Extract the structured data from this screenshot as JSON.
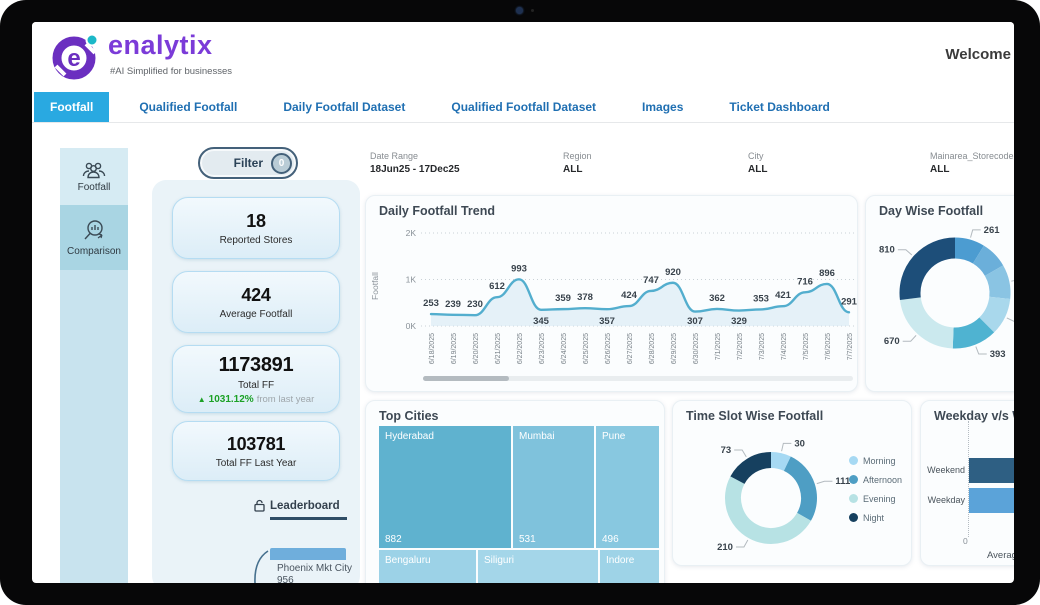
{
  "device": {
    "welcome_text": "Welcome"
  },
  "brand": {
    "name": "enalytix",
    "tagline": "#AI Simplified for businesses",
    "logo_letter": "e"
  },
  "tabs": {
    "items": [
      {
        "label": "Footfall",
        "active": true
      },
      {
        "label": "Qualified Footfall",
        "active": false
      },
      {
        "label": "Daily Footfall Dataset",
        "active": false
      },
      {
        "label": "Qualified Footfall Dataset",
        "active": false
      },
      {
        "label": "Images",
        "active": false
      },
      {
        "label": "Ticket Dashboard",
        "active": false
      }
    ]
  },
  "sidebar": {
    "items": [
      {
        "label": "Footfall",
        "icon": "people-icon"
      },
      {
        "label": "Comparison",
        "icon": "magnifier-chart-icon"
      }
    ]
  },
  "filter_button": {
    "label": "Filter",
    "badge": "0"
  },
  "filters": {
    "items": [
      {
        "label": "Date Range",
        "value": "18Jun25 - 17Dec25"
      },
      {
        "label": "Region",
        "value": "ALL"
      },
      {
        "label": "City",
        "value": "ALL"
      },
      {
        "label": "Mainarea_Storecode",
        "value": "ALL"
      }
    ]
  },
  "kpis": {
    "cards": [
      {
        "value": "18",
        "label": "Reported Stores"
      },
      {
        "value": "424",
        "label": "Average Footfall"
      },
      {
        "value": "1173891",
        "label": "Total FF",
        "delta_icon": "▲",
        "delta": "1031.12%",
        "delta_note": "from last year"
      },
      {
        "value": "103781",
        "label": "Total FF Last Year"
      }
    ]
  },
  "leaderboard": {
    "title": "Leaderboard",
    "icon": "lock-icon",
    "top_item": {
      "name": "Phoenix Mkt City",
      "value": "956"
    }
  },
  "colors": {
    "accent_tab": "#29A9E1",
    "tab_text": "#1F6FB2",
    "brand_purple": "#7B3BD8",
    "brand_teal": "#1CB8C8",
    "trend_line": "#53AECE",
    "navy": "#1D4E79",
    "delta_green": "#1CA126"
  },
  "chart_data": [
    {
      "id": "daily_trend",
      "type": "line",
      "title": "Daily Footfall Trend",
      "ylabel": "Footfall",
      "yticks": [
        "0K",
        "1K",
        "2K"
      ],
      "ylim": [
        0,
        2000
      ],
      "grid": "dotted",
      "x": [
        "6/18/2025",
        "6/19/2025",
        "6/20/2025",
        "6/21/2025",
        "6/22/2025",
        "6/23/2025",
        "6/24/2025",
        "6/25/2025",
        "6/26/2025",
        "6/27/2025",
        "6/28/2025",
        "6/29/2025",
        "6/30/2025",
        "7/1/2025",
        "7/2/2025",
        "7/3/2025",
        "7/4/2025",
        "7/5/2025",
        "7/6/2025",
        "7/7/2025"
      ],
      "values": [
        253,
        239,
        230,
        612,
        993,
        345,
        359,
        378,
        357,
        424,
        747,
        920,
        307,
        362,
        329,
        353,
        421,
        716,
        896,
        291
      ],
      "label_side": [
        "above",
        "above",
        "above",
        "above",
        "above",
        "below",
        "above",
        "above",
        "below",
        "above",
        "above",
        "above",
        "below",
        "above",
        "below",
        "above",
        "above",
        "above",
        "above",
        "above"
      ],
      "line_color": "#53AECE",
      "area_color": "#D7EAF3"
    },
    {
      "id": "day_wise",
      "type": "donut",
      "title": "Day Wise Footfall",
      "segments": [
        {
          "label": "261",
          "value": 261,
          "color": "#4C9CD1"
        },
        {
          "label": "",
          "value": 240,
          "color": "#6BAFDA"
        },
        {
          "label": "",
          "value": 300,
          "color": "#8AC4E3",
          "leader_clipped": true
        },
        {
          "label": "",
          "value": 325,
          "color": "#A9D8EC",
          "leader_clipped": true
        },
        {
          "label": "393",
          "value": 393,
          "color": "#4FB3D1"
        },
        {
          "label": "670",
          "value": 670,
          "color": "#CBE9EE"
        },
        {
          "label": "810",
          "value": 810,
          "color": "#1D4E79"
        }
      ],
      "note": "labels of right-side segments clipped by screen edge"
    },
    {
      "id": "top_cities",
      "type": "treemap",
      "title": "Top Cities",
      "cells": [
        {
          "name": "Hyderabad",
          "value": "882",
          "color": "#5FB2CF"
        },
        {
          "name": "Mumbai",
          "value": "531",
          "color": "#7FC2DC"
        },
        {
          "name": "Pune",
          "value": "496",
          "color": "#88C8E0"
        },
        {
          "name": "Bengaluru",
          "value": "",
          "color": "#9CD2E7"
        },
        {
          "name": "Siliguri",
          "value": "",
          "color": "#A4D6E9"
        },
        {
          "name": "Indore",
          "value": "",
          "color": "#9ED3E7"
        }
      ]
    },
    {
      "id": "time_slot",
      "type": "donut",
      "title": "Time Slot Wise Footfall",
      "legend_position": "right",
      "segments": [
        {
          "label": "30",
          "name": "Morning",
          "value": 30,
          "color": "#A6D9F3"
        },
        {
          "label": "111",
          "name": "Afternoon",
          "value": 111,
          "color": "#4E9EC4"
        },
        {
          "label": "210",
          "name": "Evening",
          "value": 210,
          "color": "#B7E2E4"
        },
        {
          "label": "73",
          "name": "Night",
          "value": 73,
          "color": "#16405F"
        }
      ]
    },
    {
      "id": "weekday_weekend",
      "type": "bar-horizontal",
      "title": "Weekday v/s Weekend",
      "categories": [
        "Weekend",
        "Weekday"
      ],
      "bar_colors": [
        "#2E5F83",
        "#5BA3D9"
      ],
      "x_origin_label": "0",
      "xlabel": "Average Footfall",
      "bars_clipped": true
    }
  ]
}
